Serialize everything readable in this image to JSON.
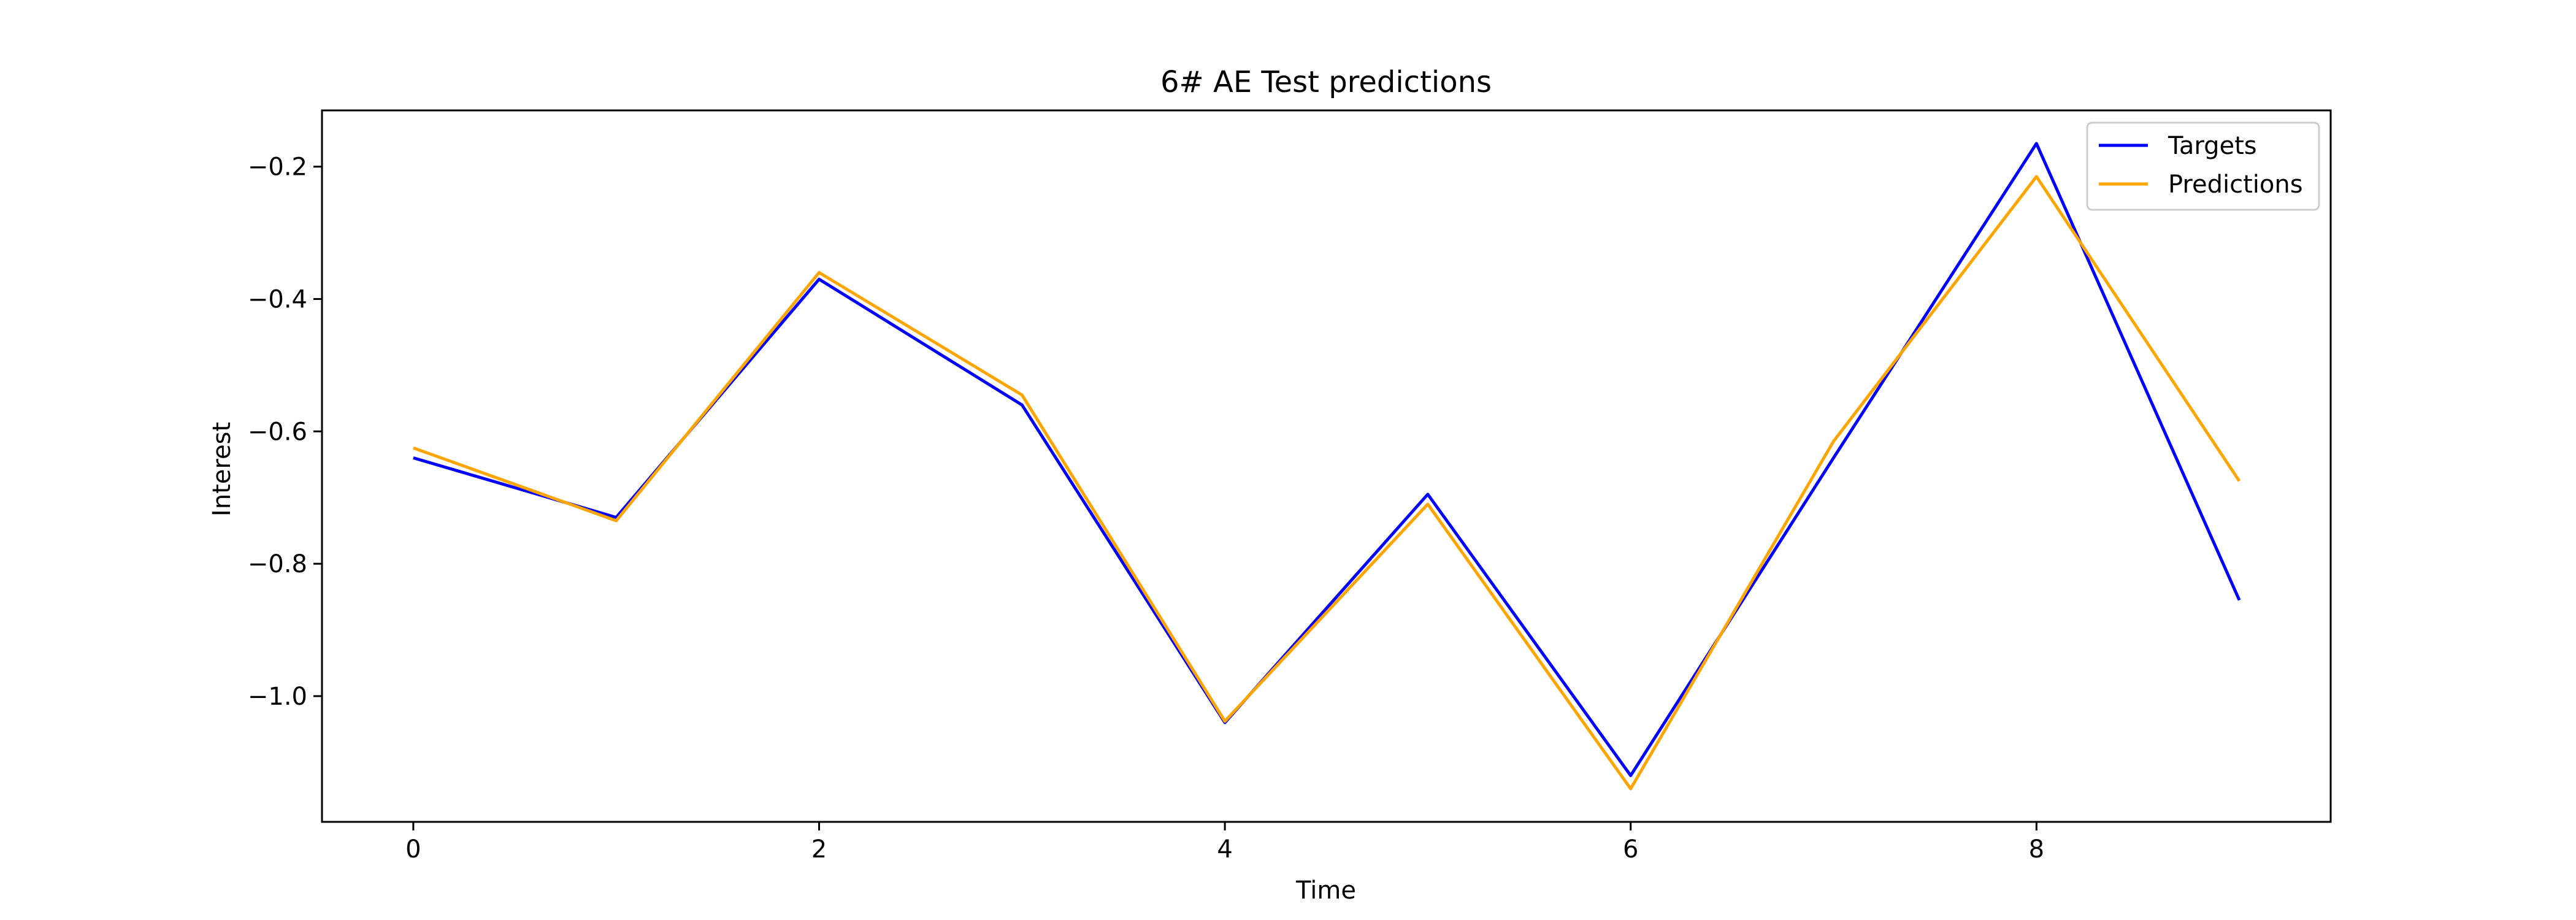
{
  "chart_data": {
    "type": "line",
    "title": "6# AE Test predictions",
    "xlabel": "Time",
    "ylabel": "Interest",
    "x": [
      0,
      1,
      2,
      3,
      4,
      5,
      6,
      7,
      8,
      9
    ],
    "xlim": [
      -0.45,
      9.45
    ],
    "ylim": [
      -1.19,
      -0.115
    ],
    "xticks": [
      0,
      2,
      4,
      6,
      8
    ],
    "xtick_labels": [
      "0",
      "2",
      "4",
      "6",
      "8"
    ],
    "yticks": [
      -0.2,
      -0.4,
      -0.6,
      -0.8,
      -1.0
    ],
    "ytick_labels": [
      "−0.2",
      "−0.4",
      "−0.6",
      "−0.8",
      "−1.0"
    ],
    "grid": false,
    "legend_position": "top-right",
    "series": [
      {
        "name": "Targets",
        "color": "#0000ff",
        "values": [
          -0.64,
          -0.73,
          -0.37,
          -0.56,
          -1.04,
          -0.695,
          -1.12,
          -0.64,
          -0.165,
          -0.855
        ]
      },
      {
        "name": "Predictions",
        "color": "#ffa500",
        "values": [
          -0.625,
          -0.735,
          -0.36,
          -0.545,
          -1.038,
          -0.71,
          -1.14,
          -0.615,
          -0.215,
          -0.675
        ]
      }
    ]
  }
}
